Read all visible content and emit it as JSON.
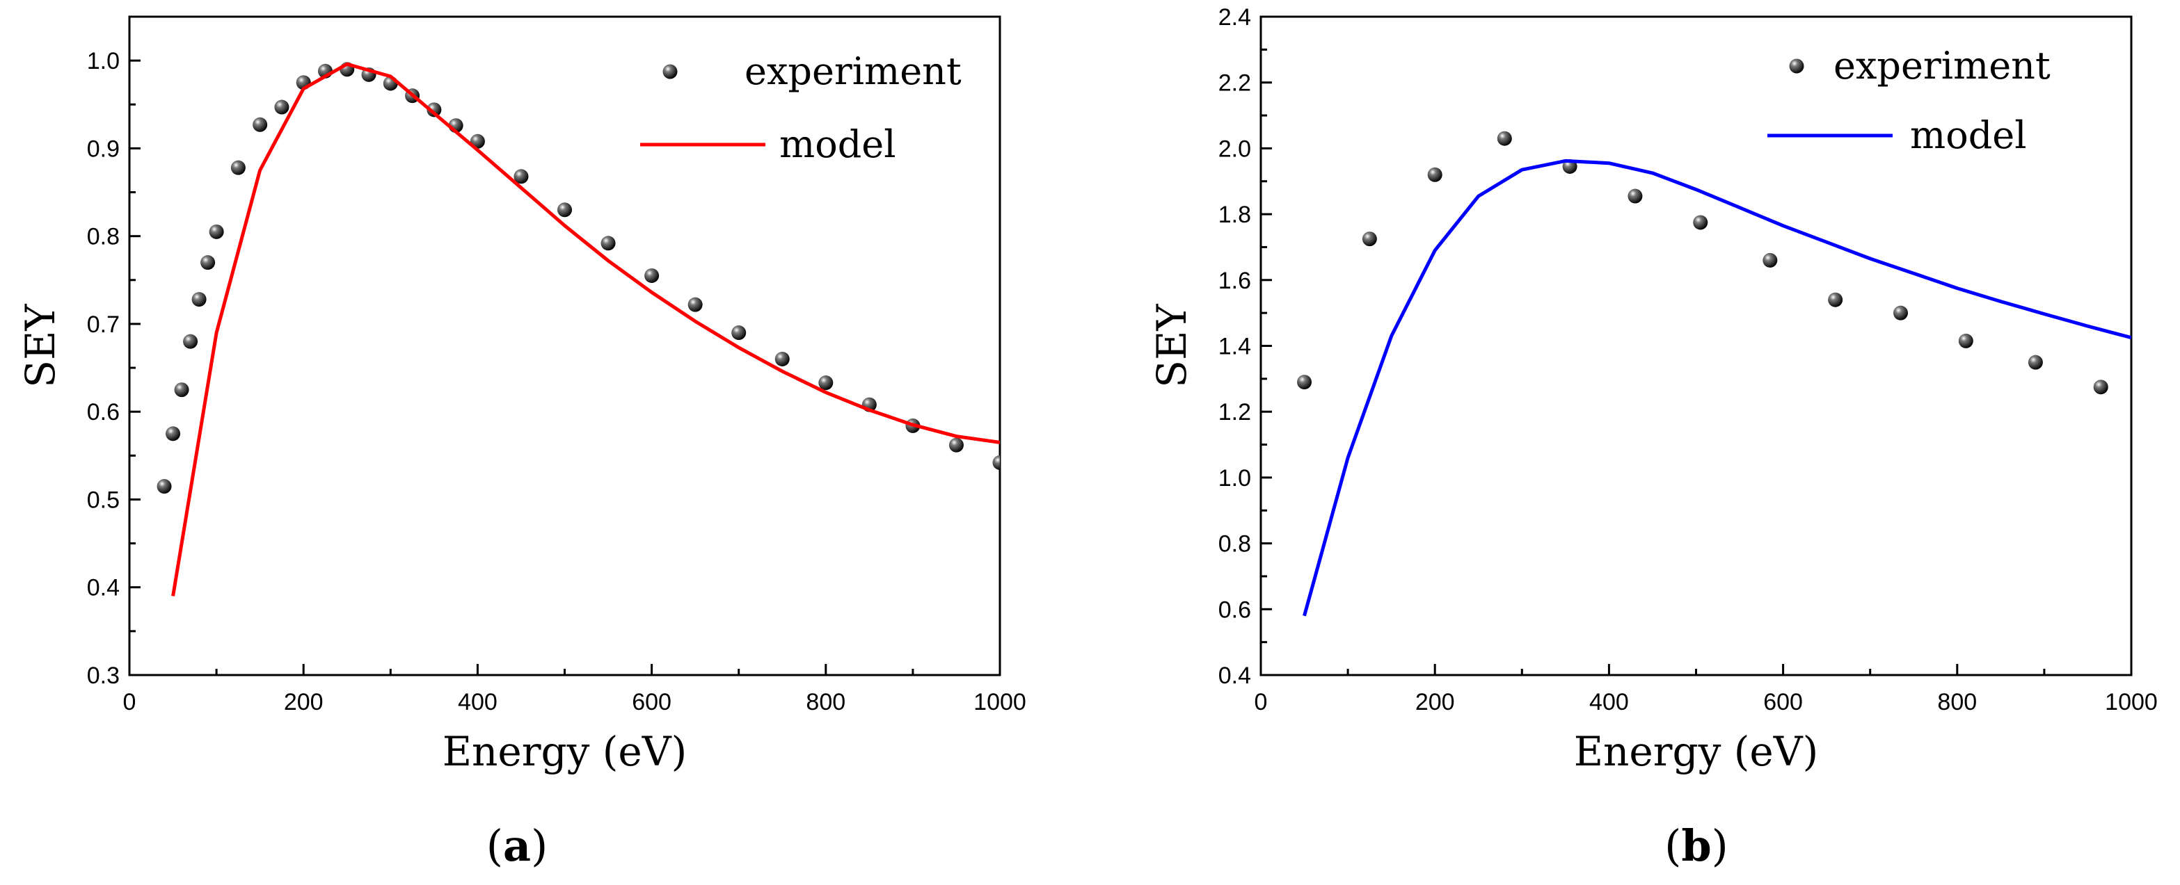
{
  "chart_data": [
    {
      "type": "line",
      "panel_label": "(a)",
      "panel_letter": "a",
      "xlabel": "Energy (eV)",
      "ylabel": "SEY",
      "xlim": [
        0,
        1000
      ],
      "ylim": [
        0.3,
        1.05
      ],
      "xticks": [
        0,
        200,
        400,
        600,
        800,
        1000
      ],
      "yticks": [
        0.3,
        0.4,
        0.5,
        0.6,
        0.7,
        0.8,
        0.9,
        1.0
      ],
      "legend": {
        "position": "top-right",
        "entries": [
          "experiment",
          "model"
        ]
      },
      "line_color": "#ff0000",
      "series": [
        {
          "name": "experiment",
          "kind": "scatter",
          "x": [
            40,
            50,
            60,
            70,
            80,
            90,
            100,
            125,
            150,
            175,
            200,
            225,
            250,
            275,
            300,
            325,
            350,
            375,
            400,
            450,
            500,
            550,
            600,
            650,
            700,
            750,
            800,
            850,
            900,
            950,
            1000
          ],
          "y": [
            0.515,
            0.575,
            0.625,
            0.68,
            0.728,
            0.77,
            0.805,
            0.878,
            0.927,
            0.947,
            0.975,
            0.988,
            0.99,
            0.984,
            0.974,
            0.96,
            0.944,
            0.926,
            0.908,
            0.868,
            0.83,
            0.792,
            0.755,
            0.722,
            0.69,
            0.66,
            0.633,
            0.608,
            0.584,
            0.562,
            0.542
          ]
        },
        {
          "name": "model",
          "kind": "line",
          "x": [
            50,
            100,
            150,
            200,
            250,
            300,
            350,
            400,
            450,
            500,
            550,
            600,
            650,
            700,
            750,
            800,
            850,
            900,
            950,
            1000
          ],
          "y": [
            0.39,
            0.69,
            0.875,
            0.968,
            0.996,
            0.982,
            0.94,
            0.898,
            0.855,
            0.812,
            0.772,
            0.736,
            0.703,
            0.673,
            0.646,
            0.622,
            0.602,
            0.585,
            0.572,
            0.565
          ]
        }
      ]
    },
    {
      "type": "line",
      "panel_label": "(b)",
      "panel_letter": "b",
      "xlabel": "Energy (eV)",
      "ylabel": "SEY",
      "xlim": [
        0,
        1000
      ],
      "ylim": [
        0.4,
        2.4
      ],
      "xticks": [
        0,
        200,
        400,
        600,
        800,
        1000
      ],
      "yticks": [
        0.4,
        0.6,
        0.8,
        1.0,
        1.2,
        1.4,
        1.6,
        1.8,
        2.0,
        2.2,
        2.4
      ],
      "legend": {
        "position": "top-right",
        "entries": [
          "experiment",
          "model"
        ]
      },
      "line_color": "#0000ff",
      "series": [
        {
          "name": "experiment",
          "kind": "scatter",
          "x": [
            50,
            125,
            200,
            280,
            355,
            430,
            505,
            585,
            660,
            735,
            810,
            890,
            965
          ],
          "y": [
            1.29,
            1.725,
            1.92,
            2.03,
            1.945,
            1.855,
            1.775,
            1.66,
            1.54,
            1.5,
            1.415,
            1.35,
            1.275
          ]
        },
        {
          "name": "model",
          "kind": "line",
          "x": [
            50,
            100,
            150,
            200,
            250,
            300,
            350,
            400,
            450,
            500,
            550,
            600,
            650,
            700,
            750,
            800,
            850,
            900,
            950,
            1000
          ],
          "y": [
            0.58,
            1.06,
            1.43,
            1.69,
            1.855,
            1.935,
            1.962,
            1.955,
            1.925,
            1.875,
            1.82,
            1.765,
            1.715,
            1.665,
            1.62,
            1.575,
            1.535,
            1.497,
            1.46,
            1.425
          ]
        }
      ]
    }
  ]
}
